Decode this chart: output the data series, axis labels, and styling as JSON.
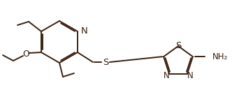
{
  "background": "#ffffff",
  "line_color": "#3a2010",
  "line_width": 1.4,
  "font_size": 8.5,
  "fig_width": 3.42,
  "fig_height": 1.39,
  "dpi": 100,
  "N_label": "N",
  "S_label": "S",
  "O_label": "O",
  "NH2_label": "NH₂"
}
